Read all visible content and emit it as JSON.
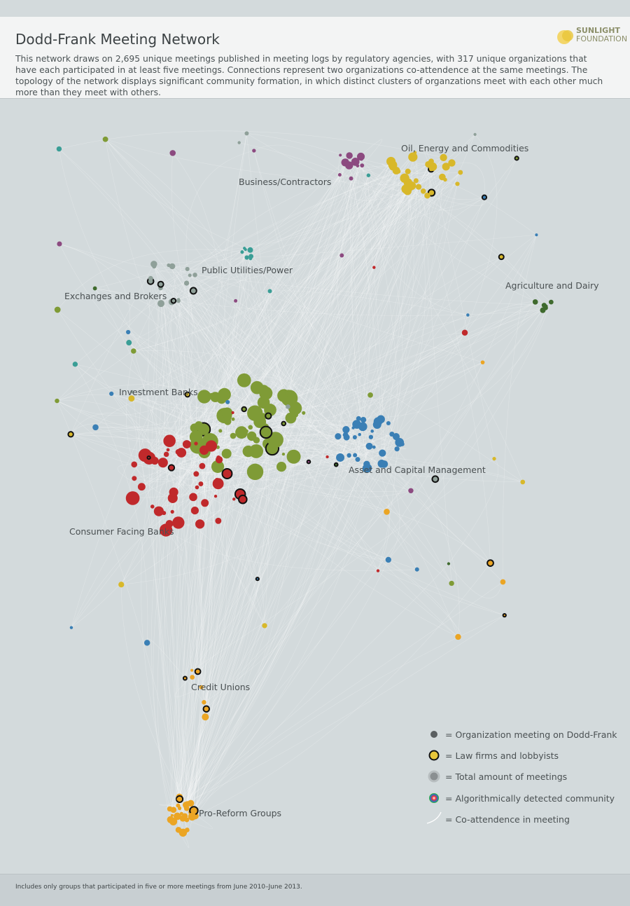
{
  "header": {
    "title": "Dodd-Frank Meeting Network",
    "description": "This network draws on 2,695 unique meetings published in meeting logs by regulatory agencies, with 317 unique organizations that have each participated in at least five meetings. Connections represent two organizations co-attendence at the same meetings. The topology of the network displays significant community formation, in which distinct clusters of organzations meet with each other much more than they meet with others.",
    "logo": [
      "SUNLIGHT",
      "FOUNDATION"
    ]
  },
  "communities": [
    "Oil, Energy and Commodities",
    "Business/Contractors",
    "Public Utilities/Power",
    "Exchanges and Brokers",
    "Agriculture and Dairy",
    "Investment Banks",
    "Asset and Capital Management",
    "Consumer Facing Banks",
    "Credit Unions",
    "Pro-Reform Groups"
  ],
  "legend": [
    "= Organization meeting on Dodd-Frank",
    "= Law firms and lobbyists",
    "= Total amount of meetings",
    "= Algorithmically detected community",
    "= Co-attendence in meeting"
  ],
  "footer": {
    "note": "Includes only groups that participated in five or more meetings from June 2010–June 2013."
  }
}
